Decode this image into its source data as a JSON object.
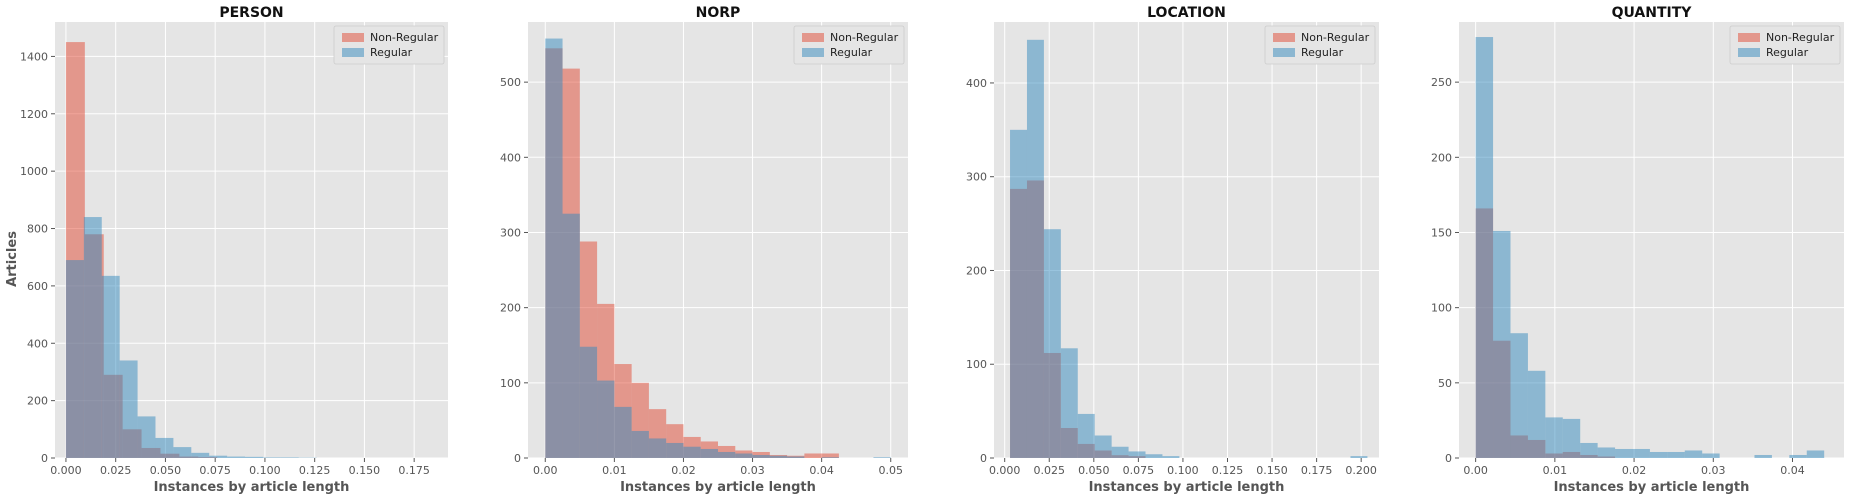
{
  "colors": {
    "non_regular": "#E24A33",
    "regular": "#348ABD",
    "background": "#E5E5E5",
    "grid": "#FFFFFF",
    "text": "#555555"
  },
  "shared": {
    "ylabel": "Articles",
    "xlabel": "Instances by article length",
    "legend": [
      "Non-Regular",
      "Regular"
    ]
  },
  "chart_data": [
    {
      "type": "bar",
      "title": "PERSON",
      "xlabel": "Instances by article length",
      "ylabel": "Articles",
      "xlim": [
        -0.0055,
        0.192
      ],
      "ylim": [
        0,
        1520
      ],
      "xticks": [
        "0.000",
        "0.025",
        "0.050",
        "0.075",
        "0.100",
        "0.125",
        "0.150",
        "0.175"
      ],
      "xtick_values": [
        0,
        0.025,
        0.05,
        0.075,
        0.1,
        0.125,
        0.15,
        0.175
      ],
      "yticks": [
        0,
        200,
        400,
        600,
        800,
        1000,
        1200,
        1400
      ],
      "grid": true,
      "legend": "top-right",
      "series": [
        {
          "name": "Non-Regular",
          "bins": [
            [
              0.0,
              0.0095,
              1450
            ],
            [
              0.0095,
              0.019,
              780
            ],
            [
              0.019,
              0.0285,
              290
            ],
            [
              0.0285,
              0.038,
              100
            ],
            [
              0.038,
              0.0475,
              35
            ],
            [
              0.0475,
              0.057,
              15
            ],
            [
              0.057,
              0.0665,
              5
            ],
            [
              0.0665,
              0.076,
              3
            ]
          ]
        },
        {
          "name": "Regular",
          "bins": [
            [
              0.0,
              0.009,
              690
            ],
            [
              0.009,
              0.018,
              840
            ],
            [
              0.018,
              0.027,
              635
            ],
            [
              0.027,
              0.036,
              340
            ],
            [
              0.036,
              0.045,
              145
            ],
            [
              0.045,
              0.054,
              70
            ],
            [
              0.054,
              0.063,
              38
            ],
            [
              0.063,
              0.072,
              18
            ],
            [
              0.072,
              0.081,
              8
            ],
            [
              0.081,
              0.09,
              5
            ],
            [
              0.09,
              0.099,
              4
            ],
            [
              0.099,
              0.108,
              2
            ],
            [
              0.108,
              0.117,
              2
            ],
            [
              0.117,
              0.126,
              1
            ]
          ]
        }
      ]
    },
    {
      "type": "bar",
      "title": "NORP",
      "xlabel": "Instances by article length",
      "ylim": [
        0,
        580
      ],
      "xlim": [
        -0.0025,
        0.0525
      ],
      "xticks": [
        "0.00",
        "0.01",
        "0.02",
        "0.03",
        "0.04",
        "0.05"
      ],
      "xtick_values": [
        0,
        0.01,
        0.02,
        0.03,
        0.04,
        0.05
      ],
      "yticks": [
        0,
        100,
        200,
        300,
        400,
        500
      ],
      "grid": true,
      "legend": "top-right",
      "series": [
        {
          "name": "Non-Regular",
          "bins": [
            [
              0.0,
              0.0025,
              545
            ],
            [
              0.0025,
              0.005,
              518
            ],
            [
              0.005,
              0.0075,
              288
            ],
            [
              0.0075,
              0.01,
              205
            ],
            [
              0.01,
              0.0125,
              125
            ],
            [
              0.0125,
              0.015,
              100
            ],
            [
              0.015,
              0.0175,
              65
            ],
            [
              0.0175,
              0.02,
              45
            ],
            [
              0.02,
              0.0225,
              28
            ],
            [
              0.0225,
              0.025,
              22
            ],
            [
              0.025,
              0.0275,
              16
            ],
            [
              0.0275,
              0.03,
              10
            ],
            [
              0.03,
              0.0325,
              8
            ],
            [
              0.0325,
              0.035,
              4
            ],
            [
              0.035,
              0.0375,
              3
            ],
            [
              0.0375,
              0.04,
              6
            ],
            [
              0.04,
              0.0425,
              6
            ]
          ]
        },
        {
          "name": "Regular",
          "bins": [
            [
              0.0,
              0.0025,
              558
            ],
            [
              0.0025,
              0.005,
              325
            ],
            [
              0.005,
              0.0075,
              148
            ],
            [
              0.0075,
              0.01,
              103
            ],
            [
              0.01,
              0.0125,
              68
            ],
            [
              0.0125,
              0.015,
              36
            ],
            [
              0.015,
              0.0175,
              26
            ],
            [
              0.0175,
              0.02,
              20
            ],
            [
              0.02,
              0.0225,
              15
            ],
            [
              0.0225,
              0.025,
              12
            ],
            [
              0.025,
              0.0275,
              8
            ],
            [
              0.0275,
              0.03,
              6
            ],
            [
              0.03,
              0.0325,
              4
            ],
            [
              0.0325,
              0.035,
              3
            ],
            [
              0.035,
              0.0375,
              2
            ],
            [
              0.04,
              0.0425,
              1
            ],
            [
              0.0475,
              0.05,
              1
            ]
          ]
        }
      ]
    },
    {
      "type": "bar",
      "title": "LOCATION",
      "xlabel": "Instances by article length",
      "ylim": [
        0,
        465
      ],
      "xlim": [
        -0.006,
        0.21
      ],
      "xticks": [
        "0.000",
        "0.025",
        "0.050",
        "0.075",
        "0.100",
        "0.125",
        "0.150",
        "0.175",
        "0.200"
      ],
      "xtick_values": [
        0,
        0.025,
        0.05,
        0.075,
        0.1,
        0.125,
        0.15,
        0.175,
        0.2
      ],
      "yticks": [
        0,
        100,
        200,
        300,
        400
      ],
      "grid": true,
      "legend": "top-right",
      "series": [
        {
          "name": "Non-Regular",
          "bins": [
            [
              0.003,
              0.0125,
              287
            ],
            [
              0.0125,
              0.022,
              296
            ],
            [
              0.022,
              0.0315,
              112
            ],
            [
              0.0315,
              0.041,
              32
            ],
            [
              0.041,
              0.0505,
              15
            ],
            [
              0.0505,
              0.06,
              8
            ],
            [
              0.06,
              0.0695,
              3
            ],
            [
              0.0695,
              0.079,
              2
            ]
          ]
        },
        {
          "name": "Regular",
          "bins": [
            [
              0.003,
              0.0125,
              350
            ],
            [
              0.0125,
              0.022,
              446
            ],
            [
              0.022,
              0.0315,
              244
            ],
            [
              0.0315,
              0.041,
              117
            ],
            [
              0.041,
              0.0505,
              47
            ],
            [
              0.0505,
              0.06,
              24
            ],
            [
              0.06,
              0.0695,
              12
            ],
            [
              0.0695,
              0.079,
              7
            ],
            [
              0.079,
              0.0885,
              4
            ],
            [
              0.0885,
              0.098,
              2
            ],
            [
              0.194,
              0.2035,
              2
            ]
          ]
        }
      ]
    },
    {
      "type": "bar",
      "title": "QUANTITY",
      "xlabel": "Instances by article length",
      "ylim": [
        0,
        290
      ],
      "xlim": [
        -0.0021,
        0.0465
      ],
      "xticks": [
        "0.00",
        "0.01",
        "0.02",
        "0.03",
        "0.04"
      ],
      "xtick_values": [
        0,
        0.01,
        0.02,
        0.03,
        0.04
      ],
      "yticks": [
        0,
        50,
        100,
        150,
        200,
        250
      ],
      "grid": true,
      "legend": "top-right",
      "series": [
        {
          "name": "Non-Regular",
          "bins": [
            [
              0.0,
              0.0022,
              166
            ],
            [
              0.0022,
              0.0044,
              78
            ],
            [
              0.0044,
              0.0066,
              15
            ],
            [
              0.0066,
              0.0088,
              12
            ],
            [
              0.0088,
              0.011,
              3
            ],
            [
              0.011,
              0.0132,
              4
            ],
            [
              0.0132,
              0.0154,
              2
            ],
            [
              0.0154,
              0.0176,
              1
            ]
          ]
        },
        {
          "name": "Regular",
          "bins": [
            [
              0.0,
              0.0022,
              280
            ],
            [
              0.0022,
              0.0044,
              151
            ],
            [
              0.0044,
              0.0066,
              83
            ],
            [
              0.0066,
              0.0088,
              58
            ],
            [
              0.0088,
              0.011,
              27
            ],
            [
              0.011,
              0.0132,
              26
            ],
            [
              0.0132,
              0.0154,
              10
            ],
            [
              0.0154,
              0.0176,
              7
            ],
            [
              0.0176,
              0.0198,
              6
            ],
            [
              0.0198,
              0.022,
              6
            ],
            [
              0.022,
              0.0242,
              4
            ],
            [
              0.0242,
              0.0264,
              4
            ],
            [
              0.0264,
              0.0286,
              5
            ],
            [
              0.0286,
              0.0308,
              3
            ],
            [
              0.0352,
              0.0374,
              2
            ],
            [
              0.0396,
              0.0418,
              2
            ],
            [
              0.0418,
              0.044,
              5
            ]
          ]
        }
      ]
    }
  ]
}
